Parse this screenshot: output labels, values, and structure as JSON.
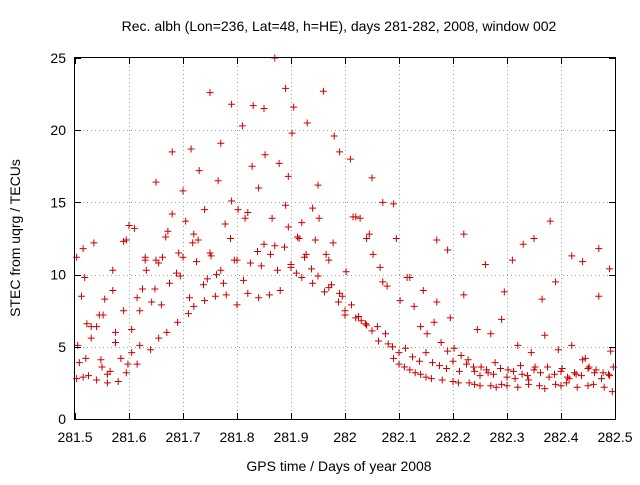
{
  "chart_data": {
    "type": "scatter",
    "title": "Rec. albh (Lon=236, Lat=48, h=HE), days 281-282, 2008, window 002",
    "xlabel": "GPS time / Days of year 2008",
    "ylabel": "STEC from uqrg / TECUs",
    "xlim": [
      281.5,
      282.5
    ],
    "ylim": [
      0,
      25
    ],
    "xticks": [
      "281.5",
      "281.6",
      "281.7",
      "281.8",
      "281.9",
      "282",
      "282.1",
      "282.2",
      "282.3",
      "282.4",
      "282.5"
    ],
    "xtick_values": [
      281.5,
      281.6,
      281.7,
      281.8,
      281.9,
      282.0,
      282.1,
      282.2,
      282.3,
      282.4,
      282.5
    ],
    "yticks": [
      "0",
      "5",
      "10",
      "15",
      "20",
      "25"
    ],
    "ytick_values": [
      0,
      5,
      10,
      15,
      20,
      25
    ],
    "grid": true,
    "marker": "plus",
    "color": "#cc0000",
    "x": [
      281.503,
      281.503,
      281.515,
      281.515,
      281.52,
      281.525,
      281.53,
      281.54,
      281.54,
      281.55,
      281.555,
      281.56,
      281.565,
      281.57,
      281.58,
      281.585,
      281.59,
      281.595,
      281.6,
      281.605,
      281.61,
      281.615,
      281.62,
      281.63,
      281.64,
      281.65,
      281.655,
      281.66,
      281.67,
      281.68,
      281.69,
      281.7,
      281.71,
      281.715,
      281.72,
      281.73,
      281.74,
      281.75,
      281.76,
      281.77,
      281.78,
      281.79,
      281.8,
      281.81,
      281.82,
      281.83,
      281.84,
      281.85,
      281.86,
      281.87,
      281.88,
      281.89,
      281.895,
      281.9,
      281.905,
      281.91,
      281.92,
      281.93,
      281.94,
      281.95,
      281.96,
      281.97,
      281.98,
      281.99,
      282.0,
      282.01,
      282.02,
      282.03,
      282.04,
      282.05,
      282.06,
      282.07,
      282.08,
      282.09,
      282.1,
      282.11,
      282.12,
      282.13,
      282.14,
      282.15,
      282.16,
      282.17,
      282.18,
      282.19,
      282.2,
      282.21,
      282.22,
      282.23,
      282.24,
      282.25,
      282.26,
      282.27,
      282.28,
      282.29,
      282.3,
      282.31,
      282.32,
      282.33,
      282.34,
      282.35,
      282.36,
      282.37,
      282.38,
      282.39,
      282.4,
      282.41,
      282.42,
      282.43,
      282.44,
      282.45,
      282.46,
      282.47,
      282.48,
      282.49,
      282.495,
      281.505,
      281.512,
      281.522,
      281.535,
      281.548,
      281.56,
      281.575,
      281.59,
      281.605,
      281.62,
      281.63,
      281.642,
      281.655,
      281.668,
      281.68,
      281.692,
      281.705,
      281.718,
      281.728,
      281.74,
      281.752,
      281.765,
      281.778,
      281.79,
      281.802,
      281.815,
      281.828,
      281.84,
      281.852,
      281.865,
      281.878,
      281.89,
      281.902,
      281.915,
      281.928,
      281.94,
      281.952,
      281.965,
      281.978,
      281.99,
      282.002,
      282.015,
      282.028,
      282.04,
      282.052,
      282.065,
      282.078,
      282.09,
      282.102,
      282.115,
      282.128,
      282.14,
      282.152,
      282.165,
      282.178,
      282.19,
      282.202,
      282.215,
      282.228,
      282.24,
      282.252,
      282.265,
      282.278,
      282.29,
      282.302,
      282.315,
      282.328,
      282.34,
      282.352,
      282.365,
      282.378,
      282.39,
      282.402,
      282.415,
      282.428,
      282.44,
      282.452,
      282.465,
      282.478,
      282.49,
      281.508,
      281.53,
      281.552,
      281.575,
      281.598,
      281.615,
      281.632,
      281.648,
      281.662,
      281.675,
      281.688,
      281.7,
      281.712,
      281.725,
      281.738,
      281.75,
      281.762,
      281.775,
      281.788,
      281.8,
      281.812,
      281.825,
      281.838,
      281.85,
      281.862,
      281.875,
      281.888,
      281.9,
      281.912,
      281.925,
      281.938,
      281.95,
      281.962,
      281.975,
      281.988,
      282.0,
      282.012,
      282.025,
      282.038,
      282.05,
      282.062,
      282.075,
      282.088,
      282.1,
      282.112,
      282.125,
      282.138,
      282.15,
      282.162,
      282.175,
      282.188,
      282.2,
      282.212,
      282.225,
      282.238,
      282.25,
      282.262,
      282.275,
      282.288,
      282.3,
      282.312,
      282.325,
      282.338,
      282.35,
      282.362,
      282.375,
      282.388,
      282.4,
      282.412,
      282.425,
      282.438,
      282.45,
      282.462,
      282.475,
      282.488,
      282.497,
      281.518,
      281.545,
      281.57,
      281.595,
      281.625,
      281.65,
      281.672,
      281.695,
      281.72,
      281.745,
      281.77,
      281.795,
      281.82,
      281.845,
      281.87,
      281.895,
      281.92,
      281.945,
      281.97,
      281.995,
      282.02,
      282.045,
      282.07,
      282.095,
      282.12,
      282.145,
      282.17,
      282.195,
      282.22,
      282.245,
      282.27,
      282.295,
      282.32,
      282.345,
      282.37,
      282.395,
      282.42,
      282.445,
      282.47,
      282.492
    ],
    "y": [
      2.8,
      11.2,
      2.9,
      11.8,
      4.2,
      3.0,
      5.6,
      2.7,
      6.4,
      3.6,
      8.3,
      2.5,
      3.3,
      8.9,
      2.6,
      4.2,
      7.5,
      3.2,
      13.4,
      4.6,
      13.2,
      3.8,
      5.1,
      11.0,
      4.8,
      16.4,
      5.6,
      7.9,
      6.0,
      18.5,
      6.7,
      15.8,
      7.3,
      18.7,
      7.8,
      17.2,
      8.2,
      22.6,
      8.5,
      19.1,
      8.6,
      21.8,
      7.9,
      20.3,
      8.7,
      21.7,
      8.4,
      21.5,
      8.6,
      25.0,
      8.9,
      22.9,
      13.3,
      10.5,
      21.6,
      10.1,
      9.8,
      20.5,
      9.4,
      16.2,
      22.7,
      9.1,
      19.6,
      8.7,
      7.2,
      18.0,
      7.0,
      6.8,
      6.5,
      16.7,
      6.4,
      15.0,
      5.2,
      4.2,
      3.8,
      3.6,
      3.4,
      3.2,
      3.1,
      2.9,
      2.8,
      12.4,
      2.7,
      11.7,
      2.6,
      2.5,
      12.8,
      2.5,
      2.4,
      2.3,
      10.7,
      2.3,
      2.2,
      2.4,
      2.3,
      11.0,
      2.2,
      12.1,
      2.4,
      12.5,
      2.3,
      2.1,
      13.7,
      2.4,
      2.3,
      2.5,
      11.3,
      2.2,
      10.9,
      2.3,
      2.4,
      11.8,
      2.2,
      10.4,
      1.9,
      5.1,
      8.5,
      6.6,
      12.2,
      4.1,
      3.1,
      5.3,
      12.3,
      6.2,
      7.5,
      11.2,
      8.1,
      10.8,
      12.6,
      14.2,
      11.5,
      13.7,
      12.2,
      12.4,
      14.5,
      11.3,
      16.5,
      13.5,
      15.1,
      14.5,
      13.9,
      17.5,
      16.0,
      18.3,
      13.9,
      17.7,
      14.8,
      19.8,
      12.5,
      11.4,
      14.6,
      13.9,
      11.4,
      12.2,
      18.5,
      10.2,
      14.0,
      13.9,
      12.5,
      11.4,
      10.5,
      9.2,
      14.9,
      8.2,
      9.8,
      7.8,
      6.4,
      5.9,
      6.7,
      5.3,
      4.7,
      4.9,
      4.4,
      4.1,
      3.3,
      3.6,
      3.2,
      3.9,
      6.9,
      3.4,
      2.8,
      3.1,
      2.7,
      3.6,
      8.3,
      2.9,
      9.5,
      3.5,
      2.8,
      3.1,
      4.1,
      3.6,
      3.4,
      3.2,
      3.0,
      3.9,
      6.4,
      7.2,
      6.0,
      3.8,
      8.4,
      10.3,
      9.0,
      11.2,
      9.4,
      10.1,
      11.2,
      8.4,
      10.9,
      9.3,
      11.5,
      10.0,
      9.4,
      12.5,
      11.0,
      9.6,
      10.8,
      11.6,
      12.1,
      11.4,
      10.3,
      11.9,
      10.7,
      12.6,
      11.2,
      10.4,
      9.9,
      8.8,
      9.3,
      8.1,
      7.5,
      7.9,
      7.1,
      6.6,
      6.1,
      5.4,
      5.9,
      5.0,
      4.6,
      4.9,
      4.3,
      4.0,
      4.6,
      3.9,
      3.7,
      3.5,
      4.0,
      3.3,
      3.8,
      3.6,
      3.0,
      3.4,
      3.1,
      3.5,
      2.9,
      3.3,
      3.7,
      3.0,
      3.4,
      3.2,
      3.6,
      3.1,
      3.3,
      2.9,
      3.2,
      3.0,
      3.5,
      3.2,
      2.8,
      3.1,
      3.6,
      9.8,
      7.2,
      10.3,
      12.4,
      9.0,
      11.0,
      13.0,
      9.9,
      12.8,
      9.7,
      10.3,
      11.0,
      14.3,
      10.6,
      12.0,
      16.8,
      13.6,
      12.4,
      11.0,
      8.5,
      14.0,
      12.8,
      9.5,
      12.5,
      9.8,
      8.9,
      8.1,
      7.0,
      8.6,
      6.2,
      5.9,
      8.8,
      5.1,
      4.6,
      5.8,
      4.8,
      5.1,
      4.2,
      8.5,
      4.7
    ]
  }
}
